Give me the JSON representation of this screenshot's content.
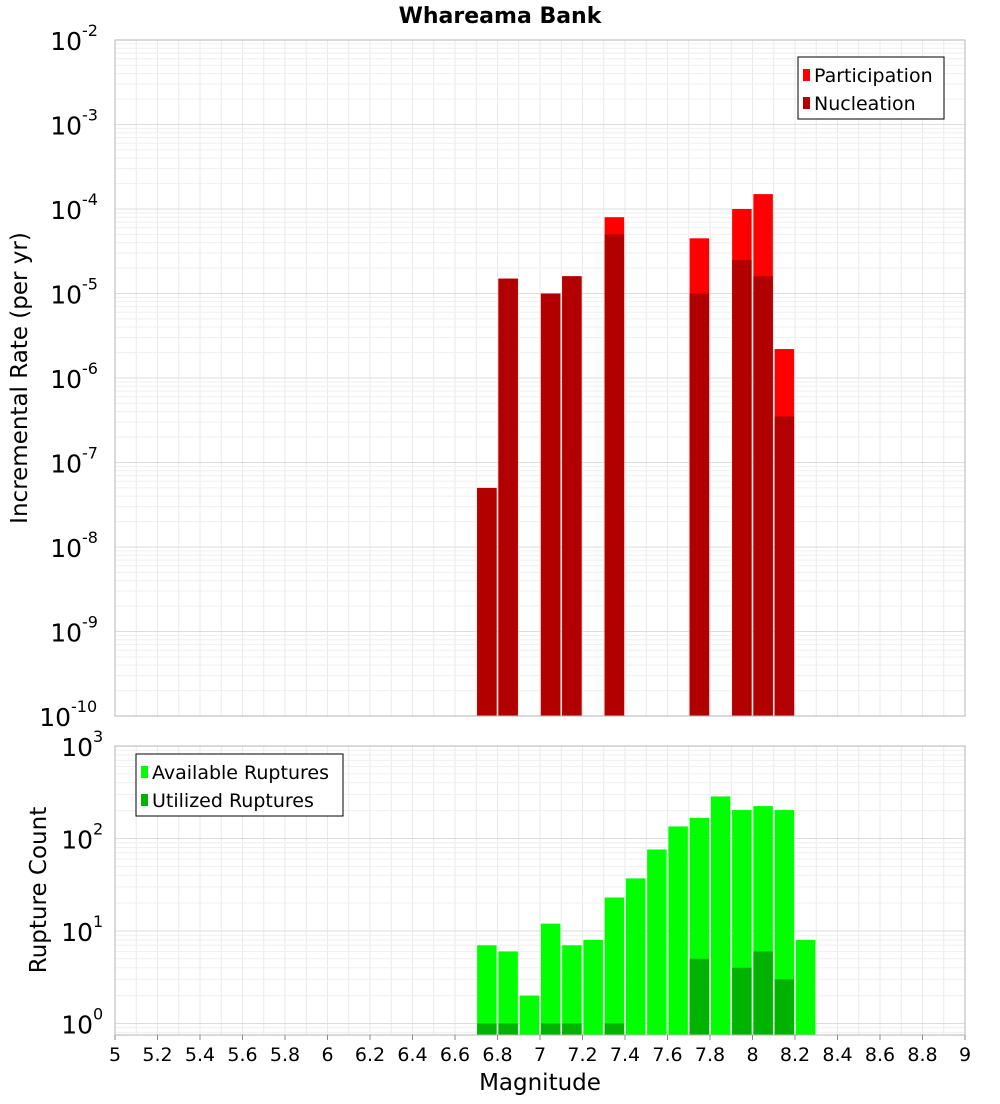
{
  "chart_data": [
    {
      "type": "bar",
      "title": "Whareama Bank",
      "xlabel": "",
      "ylabel": "Incremental Rate (per yr)",
      "yscale": "log",
      "ylim": [
        1e-10,
        0.01
      ],
      "xlim": [
        5,
        9
      ],
      "y_tick_exponents": [
        -2,
        -3,
        -4,
        -5,
        -6,
        -7,
        -8,
        -9,
        -10
      ],
      "grid": true,
      "legend": "top-right",
      "series": [
        {
          "name": "Participation",
          "color": "#ff0000",
          "x": [
            6.75,
            6.85,
            7.05,
            7.15,
            7.35,
            7.75,
            7.95,
            8.05,
            8.15
          ],
          "values": [
            5e-08,
            1.5e-05,
            1e-05,
            1.6e-05,
            8e-05,
            4.5e-05,
            0.0001,
            0.00015,
            2.2e-06
          ]
        },
        {
          "name": "Nucleation",
          "color": "#b20000",
          "x": [
            6.75,
            6.85,
            7.05,
            7.15,
            7.35,
            7.75,
            7.95,
            8.05,
            8.15
          ],
          "values": [
            5e-08,
            1.5e-05,
            1e-05,
            1.6e-05,
            5e-05,
            1e-05,
            2.5e-05,
            1.6e-05,
            3.5e-07
          ]
        }
      ]
    },
    {
      "type": "bar",
      "title": "",
      "xlabel": "Magnitude",
      "ylabel": "Rupture Count",
      "yscale": "log",
      "ylim": [
        0.75,
        1000
      ],
      "xlim": [
        5,
        9
      ],
      "y_tick_exponents": [
        3,
        2,
        1,
        0
      ],
      "x_ticks": [
        "5",
        "5.2",
        "5.4",
        "5.6",
        "5.8",
        "6",
        "6.2",
        "6.4",
        "6.6",
        "6.8",
        "7",
        "7.2",
        "7.4",
        "7.6",
        "7.8",
        "8",
        "8.2",
        "8.4",
        "8.6",
        "8.8",
        "9"
      ],
      "grid": true,
      "legend": "top-left",
      "series": [
        {
          "name": "Available Ruptures",
          "color": "#00ff00",
          "x": [
            6.75,
            6.85,
            6.95,
            7.05,
            7.15,
            7.25,
            7.35,
            7.45,
            7.55,
            7.65,
            7.75,
            7.85,
            7.95,
            8.05,
            8.15,
            8.25
          ],
          "values": [
            7,
            6,
            2,
            12,
            7,
            8,
            23,
            37,
            76,
            135,
            167,
            285,
            203,
            224,
            203,
            8
          ]
        },
        {
          "name": "Utilized Ruptures",
          "color": "#00b300",
          "x": [
            6.75,
            6.85,
            7.05,
            7.15,
            7.35,
            7.75,
            7.95,
            8.05,
            8.15
          ],
          "values": [
            1,
            1,
            1,
            1,
            1,
            5,
            4,
            6,
            3
          ]
        }
      ]
    }
  ]
}
